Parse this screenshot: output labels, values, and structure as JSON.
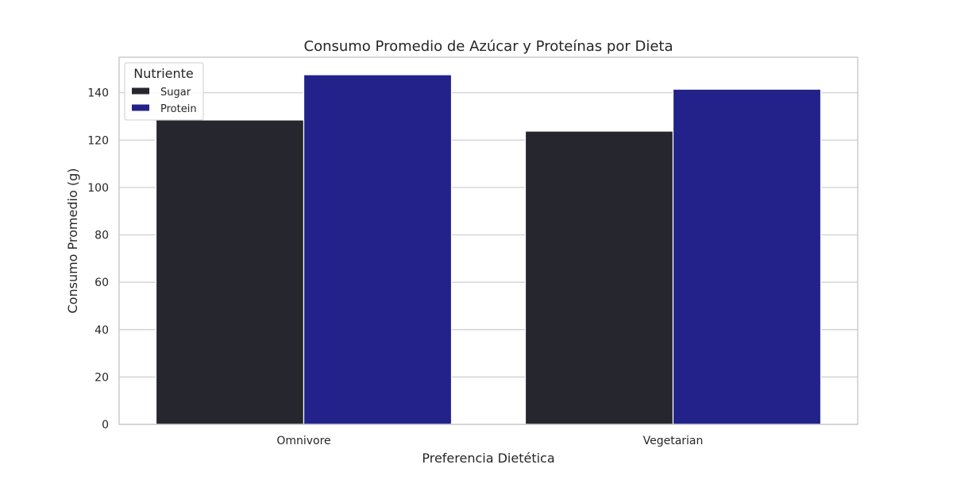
{
  "chart_data": {
    "type": "bar",
    "title": "Consumo Promedio de Azúcar y Proteínas por Dieta",
    "xlabel": "Preferencia Dietética",
    "ylabel": "Consumo Promedio (g)",
    "categories": [
      "Omnivore",
      "Vegetarian"
    ],
    "series": [
      {
        "name": "Sugar",
        "values": [
          128.5,
          123.8
        ],
        "color": "#26262f"
      },
      {
        "name": "Protein",
        "values": [
          147.6,
          141.5
        ],
        "color": "#22228a"
      }
    ],
    "ylim": [
      0,
      155
    ],
    "yticks": [
      0,
      20,
      40,
      60,
      80,
      100,
      120,
      140
    ],
    "grid": true,
    "legend": {
      "title": "Nutriente",
      "placement": "top-left"
    }
  }
}
